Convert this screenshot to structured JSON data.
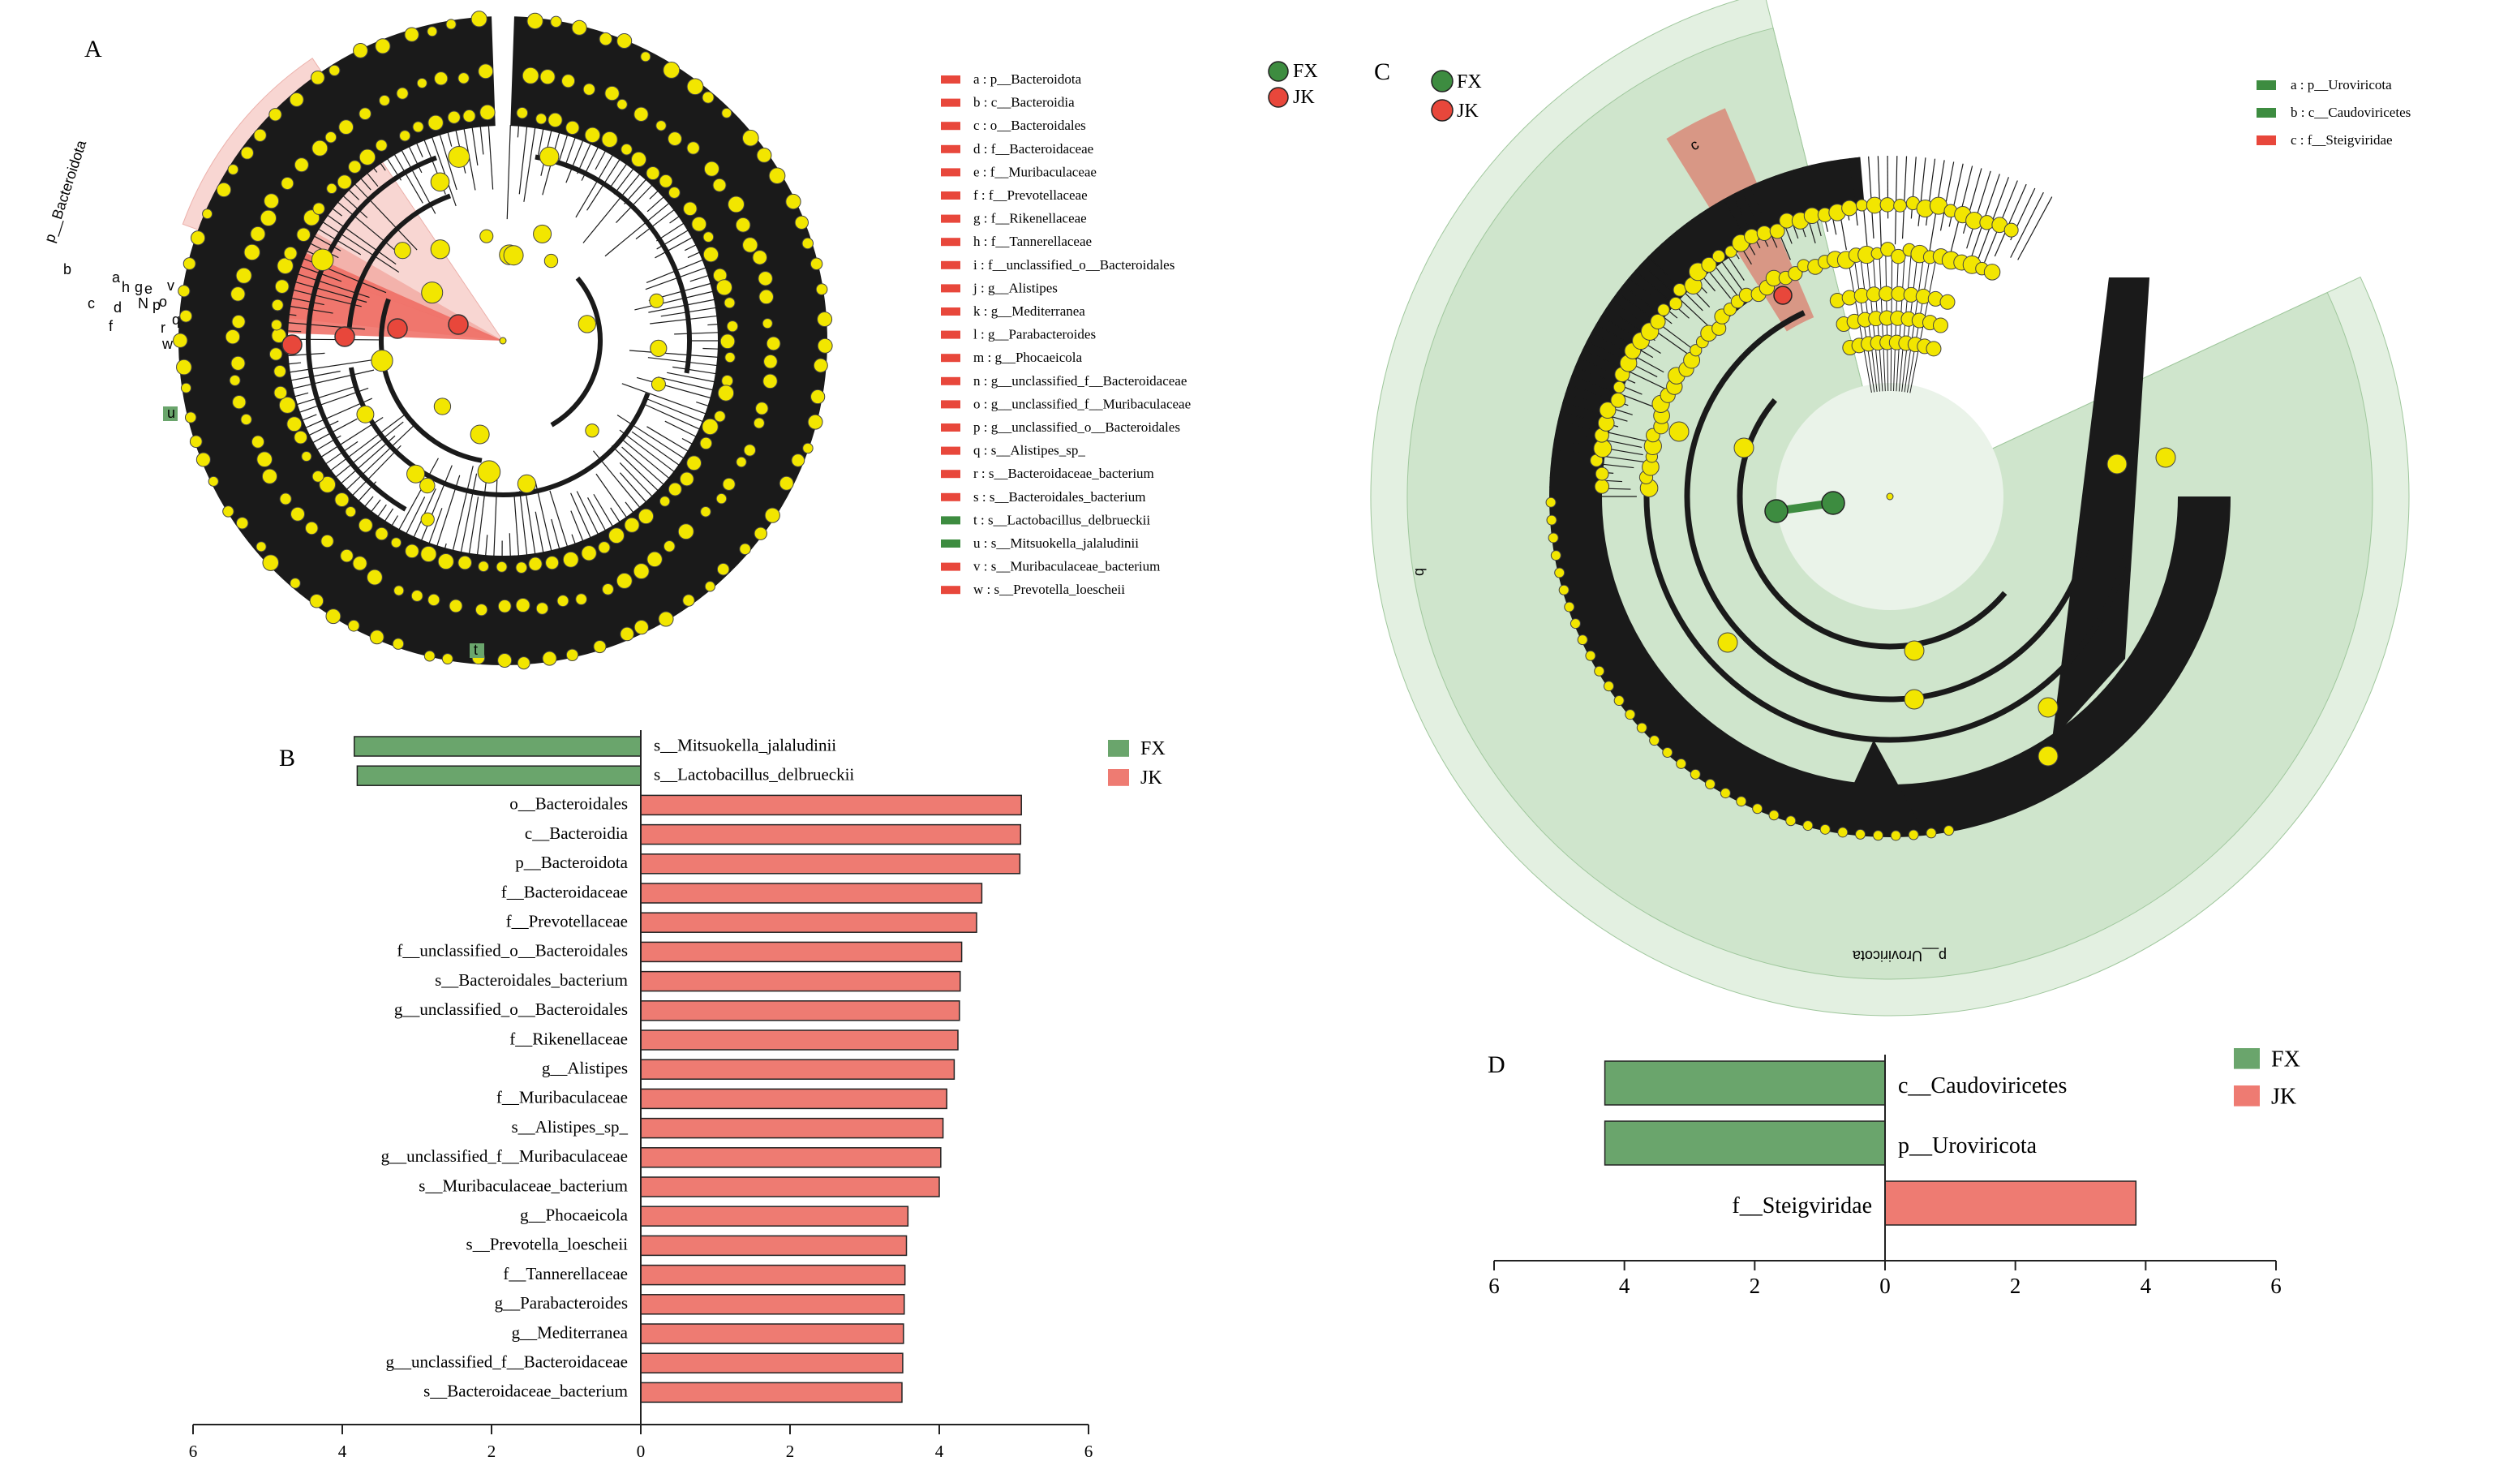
{
  "panel_labels": {
    "A": "A",
    "B": "B",
    "C": "C",
    "D": "D"
  },
  "colors": {
    "FX": "#3d8c40",
    "FX_bar": "#6aa56c",
    "JK": "#e8473b",
    "JK_bar": "#ee7b72",
    "node": "#f2e600",
    "tree": "#1a1a1a",
    "shade_JK": "#f7cfcb",
    "shade_FX": "#cfe5cc"
  },
  "cladogram_A": {
    "groups": [
      {
        "name": "FX",
        "color": "#3d8c40"
      },
      {
        "name": "JK",
        "color": "#e8473b"
      }
    ],
    "legend": [
      {
        "key": "a",
        "text": "a : p__Bacteroidota",
        "group": "JK"
      },
      {
        "key": "b",
        "text": "b : c__Bacteroidia",
        "group": "JK"
      },
      {
        "key": "c",
        "text": "c : o__Bacteroidales",
        "group": "JK"
      },
      {
        "key": "d",
        "text": "d : f__Bacteroidaceae",
        "group": "JK"
      },
      {
        "key": "e",
        "text": "e : f__Muribaculaceae",
        "group": "JK"
      },
      {
        "key": "f",
        "text": "f : f__Prevotellaceae",
        "group": "JK"
      },
      {
        "key": "g",
        "text": "g : f__Rikenellaceae",
        "group": "JK"
      },
      {
        "key": "h",
        "text": "h : f__Tannerellaceae",
        "group": "JK"
      },
      {
        "key": "i",
        "text": "i : f__unclassified_o__Bacteroidales",
        "group": "JK"
      },
      {
        "key": "j",
        "text": "j : g__Alistipes",
        "group": "JK"
      },
      {
        "key": "k",
        "text": "k : g__Mediterranea",
        "group": "JK"
      },
      {
        "key": "l",
        "text": "l : g__Parabacteroides",
        "group": "JK"
      },
      {
        "key": "m",
        "text": "m : g__Phocaeicola",
        "group": "JK"
      },
      {
        "key": "n",
        "text": "n : g__unclassified_f__Bacteroidaceae",
        "group": "JK"
      },
      {
        "key": "o",
        "text": "o : g__unclassified_f__Muribaculaceae",
        "group": "JK"
      },
      {
        "key": "p",
        "text": "p : g__unclassified_o__Bacteroidales",
        "group": "JK"
      },
      {
        "key": "q",
        "text": "q : s__Alistipes_sp_",
        "group": "JK"
      },
      {
        "key": "r",
        "text": "r : s__Bacteroidaceae_bacterium",
        "group": "JK"
      },
      {
        "key": "s",
        "text": "s : s__Bacteroidales_bacterium",
        "group": "JK"
      },
      {
        "key": "t",
        "text": "t : s__Lactobacillus_delbrueckii",
        "group": "FX"
      },
      {
        "key": "u",
        "text": "u : s__Mitsuokella_jalaludinii",
        "group": "FX"
      },
      {
        "key": "v",
        "text": "v : s__Muribaculaceae_bacterium",
        "group": "JK"
      },
      {
        "key": "w",
        "text": "w : s__Prevotella_loescheii",
        "group": "JK"
      }
    ],
    "clade_label": "p__Bacteroidota",
    "sector_letters": [
      "b",
      "c",
      "f",
      "d",
      "h",
      "g",
      "e",
      "a",
      "N",
      "p",
      "o",
      "r",
      "q",
      "v",
      "w"
    ],
    "green_markers": [
      "u",
      "t"
    ]
  },
  "cladogram_C": {
    "groups": [
      {
        "name": "FX",
        "color": "#3d8c40"
      },
      {
        "name": "JK",
        "color": "#e8473b"
      }
    ],
    "legend": [
      {
        "key": "a",
        "text": "a : p__Uroviricota",
        "group": "FX"
      },
      {
        "key": "b",
        "text": "b : c__Caudoviricetes",
        "group": "FX"
      },
      {
        "key": "c",
        "text": "c : f__Steigviridae",
        "group": "JK"
      }
    ],
    "clade_label": "p__Uroviricota",
    "sector_letters": [
      "b",
      "c"
    ]
  },
  "chart_data": [
    {
      "type": "bar",
      "orientation": "horizontal",
      "title": "",
      "xlabel": "",
      "xlim": [
        -6,
        6
      ],
      "x_ticks": [
        -6,
        -4,
        -2,
        0,
        2,
        4,
        6
      ],
      "tick_labels": [
        "6",
        "4",
        "2",
        "0",
        "2",
        "4",
        "6"
      ],
      "legend": [
        {
          "name": "FX",
          "color": "#6aa56c"
        },
        {
          "name": "JK",
          "color": "#ee7b72"
        }
      ],
      "legend_position": "top-right",
      "categories": [
        "s__Mitsuokella_jalaludinii",
        "s__Lactobacillus_delbrueckii",
        "o__Bacteroidales",
        "c__Bacteroidia",
        "p__Bacteroidota",
        "f__Bacteroidaceae",
        "f__Prevotellaceae",
        "f__unclassified_o__Bacteroidales",
        "s__Bacteroidales_bacterium",
        "g__unclassified_o__Bacteroidales",
        "f__Rikenellaceae",
        "g__Alistipes",
        "f__Muribaculaceae",
        "s__Alistipes_sp_",
        "g__unclassified_f__Muribaculaceae",
        "s__Muribaculaceae_bacterium",
        "g__Phocaeicola",
        "s__Prevotella_loescheii",
        "f__Tannerellaceae",
        "g__Parabacteroides",
        "g__Mediterranea",
        "g__unclassified_f__Bacteroidaceae",
        "s__Bacteroidaceae_bacterium"
      ],
      "values": [
        -3.84,
        -3.8,
        5.1,
        5.09,
        5.08,
        4.57,
        4.5,
        4.3,
        4.28,
        4.27,
        4.25,
        4.2,
        4.1,
        4.05,
        4.02,
        4.0,
        3.58,
        3.56,
        3.54,
        3.53,
        3.52,
        3.51,
        3.5
      ],
      "groups": [
        "FX",
        "FX",
        "JK",
        "JK",
        "JK",
        "JK",
        "JK",
        "JK",
        "JK",
        "JK",
        "JK",
        "JK",
        "JK",
        "JK",
        "JK",
        "JK",
        "JK",
        "JK",
        "JK",
        "JK",
        "JK",
        "JK",
        "JK"
      ]
    },
    {
      "type": "bar",
      "orientation": "horizontal",
      "title": "",
      "xlabel": "",
      "xlim": [
        -6,
        6
      ],
      "x_ticks": [
        -6,
        -4,
        -2,
        0,
        2,
        4,
        6
      ],
      "tick_labels": [
        "6",
        "4",
        "2",
        "0",
        "2",
        "4",
        "6"
      ],
      "legend": [
        {
          "name": "FX",
          "color": "#6aa56c"
        },
        {
          "name": "JK",
          "color": "#ee7b72"
        }
      ],
      "legend_position": "top-right",
      "categories": [
        "c__Caudoviricetes",
        "p__Uroviricota",
        "f__Steigviridae"
      ],
      "values": [
        -4.3,
        -4.3,
        3.85
      ],
      "groups": [
        "FX",
        "FX",
        "JK"
      ]
    }
  ]
}
